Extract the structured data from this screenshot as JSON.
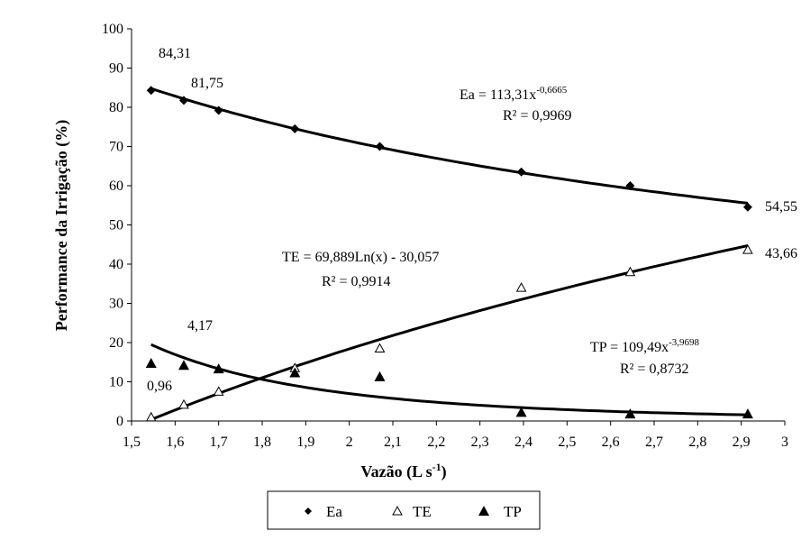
{
  "chart_data": {
    "type": "scatter",
    "xlabel": "Vazão (L s",
    "xlabel_exponent": "-1",
    "xlabel_suffix": ")",
    "ylabel": "Performance da Irrigação (%)",
    "xlim": [
      1.5,
      3.0
    ],
    "ylim": [
      0,
      100
    ],
    "x_ticks": [
      "1,5",
      "1,6",
      "1,7",
      "1,8",
      "1,9",
      "2",
      "2,1",
      "2,2",
      "2,3",
      "2,4",
      "2,5",
      "2,6",
      "2,7",
      "2,8",
      "2,9",
      "3"
    ],
    "y_ticks": [
      "0",
      "10",
      "20",
      "30",
      "40",
      "50",
      "60",
      "70",
      "80",
      "90",
      "100"
    ],
    "grid": false,
    "legend_position": "bottom",
    "series": [
      {
        "name": "Ea",
        "marker": "filled-diamond",
        "x": [
          1.545,
          1.62,
          1.7,
          1.875,
          2.07,
          2.395,
          2.645,
          2.915
        ],
        "y": [
          84.31,
          81.75,
          79.2,
          74.5,
          70.0,
          63.5,
          60.0,
          54.55
        ],
        "fit": {
          "model": "power",
          "a": 113.31,
          "b": -0.6665
        }
      },
      {
        "name": "TE",
        "marker": "open-triangle",
        "x": [
          1.545,
          1.62,
          1.7,
          1.875,
          2.07,
          2.395,
          2.645,
          2.915
        ],
        "y": [
          0.96,
          4.17,
          7.5,
          13.5,
          18.5,
          34.0,
          38.0,
          43.66
        ],
        "fit": {
          "model": "log",
          "a": 69.889,
          "b": -30.057
        }
      },
      {
        "name": "TP",
        "marker": "filled-triangle",
        "x": [
          1.545,
          1.62,
          1.7,
          1.875,
          2.07,
          2.395,
          2.645,
          2.915
        ],
        "y": [
          14.7,
          14.2,
          13.3,
          12.3,
          11.3,
          2.2,
          1.8,
          1.8
        ],
        "fit": {
          "model": "power",
          "a": 109.49,
          "b": -3.9698
        }
      }
    ],
    "data_labels": [
      "84,31",
      "81,75",
      "54,55",
      "43,66",
      "4,17",
      "0,96"
    ],
    "equations": {
      "ea": {
        "main": "Ea = 113,31x",
        "exp": "-0,6665",
        "r2": "R² = 0,9969"
      },
      "te": {
        "main": "TE = 69,889Ln(x) - 30,057",
        "r2": "R² = 0,9914"
      },
      "tp": {
        "main": "TP = 109,49x",
        "exp": "-3,9698",
        "r2": "R² = 0,8732"
      }
    },
    "colors": {
      "line": "#000000",
      "marker": "#000000",
      "background": "#ffffff"
    }
  }
}
